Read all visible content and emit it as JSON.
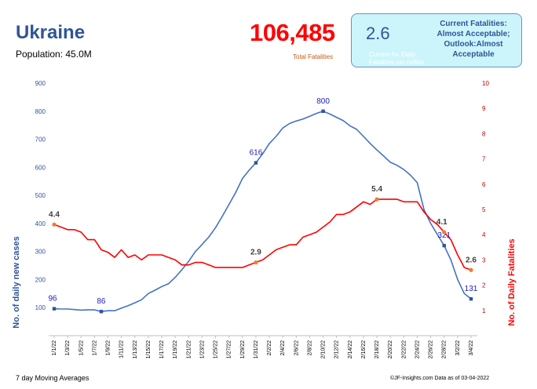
{
  "header": {
    "country": "Ukraine",
    "population": "Population: 45.0M",
    "total_fatalities": "106,485",
    "total_fatalities_label": "Total Fatalities"
  },
  "info_box": {
    "avg_value": "2.6",
    "avg_label": "Current Av. Daily Fatalities per million",
    "status": "Current Fatalities: Almost Acceptable; Outlook:Almost Acceptable"
  },
  "footer": {
    "note": "7 day Moving Averages",
    "credit": "©JF-Insights.com  Data as of 03-04-2022"
  },
  "colors": {
    "cases": "#4472c4",
    "fatalities": "#ff0000",
    "marker_cases": "#2f5597",
    "marker_fatalities": "#ed7d31"
  },
  "chart_data": {
    "type": "line",
    "x": [
      "1/1/22",
      "1/2/22",
      "1/3/22",
      "1/4/22",
      "1/5/22",
      "1/6/22",
      "1/7/22",
      "1/8/22",
      "1/9/22",
      "1/10/22",
      "1/11/22",
      "1/12/22",
      "1/13/22",
      "1/14/22",
      "1/15/22",
      "1/16/22",
      "1/17/22",
      "1/18/22",
      "1/19/22",
      "1/20/22",
      "1/21/22",
      "1/22/22",
      "1/23/22",
      "1/24/22",
      "1/25/22",
      "1/26/22",
      "1/27/22",
      "1/28/22",
      "1/29/22",
      "1/30/22",
      "1/31/22",
      "2/1/22",
      "2/2/22",
      "2/3/22",
      "2/4/22",
      "2/5/22",
      "2/6/22",
      "2/7/22",
      "2/8/22",
      "2/9/22",
      "2/10/22",
      "2/11/22",
      "2/12/22",
      "2/13/22",
      "2/14/22",
      "2/15/22",
      "2/16/22",
      "2/17/22",
      "2/18/22",
      "2/19/22",
      "2/20/22",
      "2/21/22",
      "2/22/22",
      "2/23/22",
      "2/24/22",
      "2/25/22",
      "2/26/22",
      "2/27/22",
      "2/28/22",
      "3/1/22",
      "3/2/22",
      "3/3/22",
      "3/4/22"
    ],
    "x_tick_labels": [
      "1/1/22",
      "1/3/22",
      "1/5/22",
      "1/7/22",
      "1/9/22",
      "1/11/22",
      "1/13/22",
      "1/15/22",
      "1/17/22",
      "1/19/22",
      "1/21/22",
      "1/23/22",
      "1/25/22",
      "1/27/22",
      "1/29/22",
      "1/31/22",
      "2/2/22",
      "2/4/22",
      "2/6/22",
      "2/8/22",
      "2/10/22",
      "2/12/22",
      "2/14/22",
      "2/16/22",
      "2/18/22",
      "2/20/22",
      "2/22/22",
      "2/24/22",
      "2/26/22",
      "2/28/22",
      "3/2/22",
      "3/4/22"
    ],
    "series": [
      {
        "name": "No. of daily new cases",
        "axis": "left",
        "values": [
          96,
          95,
          95,
          93,
          91,
          92,
          92,
          86,
          89,
          89,
          98,
          107,
          117,
          128,
          150,
          162,
          175,
          185,
          208,
          235,
          265,
          300,
          325,
          352,
          385,
          425,
          468,
          510,
          560,
          590,
          616,
          648,
          685,
          710,
          740,
          756,
          765,
          772,
          782,
          792,
          800,
          790,
          778,
          766,
          748,
          735,
          710,
          685,
          662,
          640,
          618,
          607,
          592,
          572,
          545,
          450,
          400,
          360,
          321,
          270,
          200,
          150,
          131
        ]
      },
      {
        "name": "No. of Daily Fatalities",
        "axis": "right",
        "values": [
          4.4,
          4.3,
          4.2,
          4.2,
          4.1,
          3.8,
          3.8,
          3.4,
          3.3,
          3.1,
          3.4,
          3.1,
          3.2,
          3.0,
          3.2,
          3.2,
          3.2,
          3.1,
          3.0,
          2.8,
          2.8,
          2.9,
          2.9,
          2.8,
          2.7,
          2.7,
          2.7,
          2.7,
          2.7,
          2.8,
          2.9,
          3.0,
          3.2,
          3.4,
          3.5,
          3.6,
          3.6,
          3.9,
          4.0,
          4.1,
          4.3,
          4.5,
          4.8,
          4.8,
          4.9,
          5.1,
          5.3,
          5.2,
          5.4,
          5.4,
          5.4,
          5.4,
          5.3,
          5.3,
          5.3,
          4.9,
          4.6,
          4.4,
          4.1,
          3.8,
          3.2,
          2.7,
          2.6
        ]
      }
    ],
    "annotations": [
      {
        "series": 0,
        "index": 0,
        "label": "96"
      },
      {
        "series": 0,
        "index": 7,
        "label": "86"
      },
      {
        "series": 0,
        "index": 30,
        "label": "616"
      },
      {
        "series": 0,
        "index": 40,
        "label": "800"
      },
      {
        "series": 0,
        "index": 58,
        "label": "321"
      },
      {
        "series": 0,
        "index": 62,
        "label": "131"
      },
      {
        "series": 1,
        "index": 0,
        "label": "4.4"
      },
      {
        "series": 1,
        "index": 30,
        "label": "2.9"
      },
      {
        "series": 1,
        "index": 48,
        "label": "5.4"
      },
      {
        "series": 1,
        "index": 58,
        "label": "4.1"
      },
      {
        "series": 1,
        "index": 62,
        "label": "2.6"
      }
    ],
    "ylabel": "No. of daily new  cases",
    "y2label": "No. of Daily Fatalities",
    "ylim": [
      0,
      900
    ],
    "y2lim": [
      0,
      10
    ],
    "yticks": [
      100,
      200,
      300,
      400,
      500,
      600,
      700,
      800,
      900
    ],
    "y2ticks": [
      1,
      2,
      3,
      4,
      5,
      6,
      7,
      8,
      9,
      10
    ],
    "grid": false
  }
}
